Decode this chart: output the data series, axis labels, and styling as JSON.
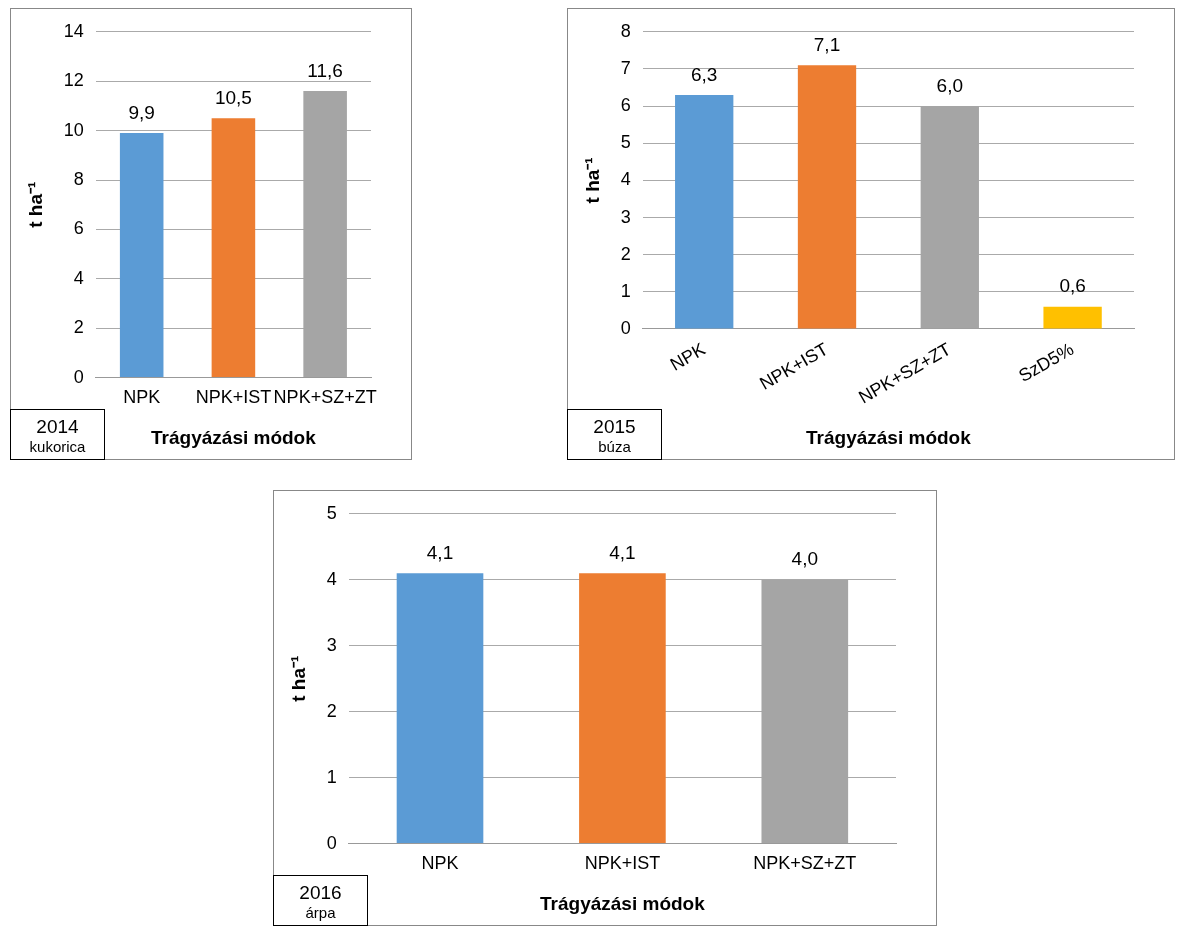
{
  "chart_data": [
    {
      "type": "bar",
      "categories": [
        "NPK",
        "NPK+IST",
        "NPK+SZ+ZT"
      ],
      "values": [
        9.9,
        10.5,
        11.6
      ],
      "colors": [
        "#5b9bd5",
        "#ed7d31",
        "#a5a5a5"
      ],
      "value_labels": [
        "9,9",
        "10,5",
        "11,6"
      ],
      "ylim": [
        0,
        14
      ],
      "yticks": [
        0,
        2,
        4,
        6,
        8,
        10,
        12,
        14
      ],
      "grid": "y",
      "ylabel": "t ha⁻¹",
      "xlabel": "Trágyázási módok",
      "annotations": [
        "2014",
        "kukorica"
      ]
    },
    {
      "type": "bar",
      "categories": [
        "NPK",
        "NPK+IST",
        "NPK+SZ+ZT",
        "SzD5%"
      ],
      "values": [
        6.3,
        7.1,
        6.0,
        0.6
      ],
      "colors": [
        "#5b9bd5",
        "#ed7d31",
        "#a5a5a5",
        "#ffc000"
      ],
      "value_labels": [
        "6,3",
        "7,1",
        "6,0",
        "0,6"
      ],
      "ylim": [
        0,
        8
      ],
      "yticks": [
        0,
        1,
        2,
        3,
        4,
        5,
        6,
        7,
        8
      ],
      "grid": "y",
      "ylabel": "t ha⁻¹",
      "xlabel": "Trágyázási módok",
      "annotations": [
        "2015",
        "búza"
      ]
    },
    {
      "type": "bar",
      "categories": [
        "NPK",
        "NPK+IST",
        "NPK+SZ+ZT"
      ],
      "values": [
        4.1,
        4.1,
        4.0
      ],
      "colors": [
        "#5b9bd5",
        "#ed7d31",
        "#a5a5a5"
      ],
      "value_labels": [
        "4,1",
        "4,1",
        "4,0"
      ],
      "ylim": [
        0,
        5
      ],
      "yticks": [
        0,
        1,
        2,
        3,
        4,
        5
      ],
      "grid": "y",
      "ylabel": "t ha⁻¹",
      "xlabel": "Trágyázási módok",
      "annotations": [
        "2016",
        "árpa"
      ]
    }
  ]
}
